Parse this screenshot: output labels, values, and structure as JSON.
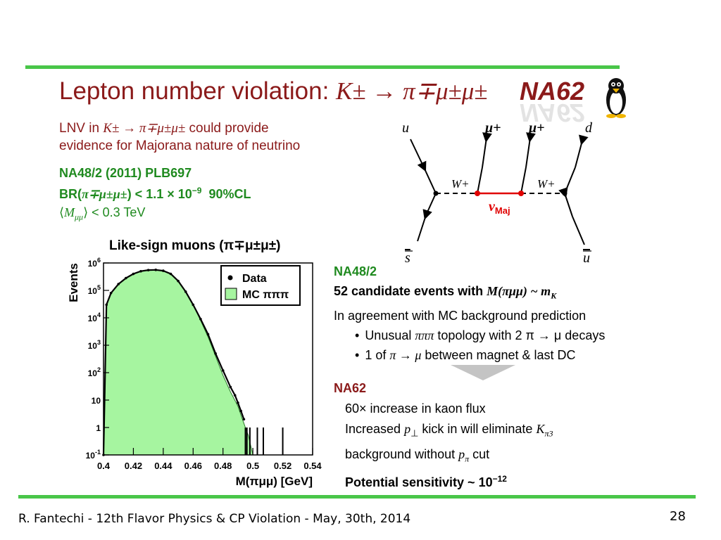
{
  "title": {
    "text": "Lepton number violation: ",
    "process": "K± → π∓μ±μ±"
  },
  "logo": {
    "text": "NA62",
    "icon": "penguin-icon"
  },
  "lnv": {
    "line1_prefix": "LNV in ",
    "line1_math": "K± → π∓μ±μ±",
    "line1_suffix": " could provide",
    "line2": "evidence for Majorana nature of neutrino"
  },
  "na48_result": {
    "ref": "NA48/2 (2011) PLB697",
    "br_prefix": "BR(",
    "br_math": "π∓μ±μ±",
    "br_suffix": ") < 1.1 × 10",
    "br_exp": "−9",
    "cl": "90%CL",
    "mmu_symbol": "M",
    "mmu_sub": "μμ",
    "mmu_value": " < 0.3 TeV"
  },
  "feynman": {
    "labels": {
      "u": "u",
      "mu1": "μ+",
      "mu2": "μ+",
      "d": "d",
      "w1": "W+",
      "w2": "W+",
      "nu": "ν",
      "nu_sub": "Maj",
      "sbar": "s",
      "ubar": "u"
    },
    "colors": {
      "line": "#000000",
      "majorana": "#e00000"
    }
  },
  "chart_data": {
    "type": "histogram",
    "title": "Like-sign muons (π∓μ±μ±)",
    "xlabel": "M(πμμ) [GeV]",
    "ylabel": "Events",
    "xlim": [
      0.4,
      0.54
    ],
    "ylim": [
      0.1,
      1000000
    ],
    "yscale": "log",
    "x_ticks": [
      "0.4",
      "0.42",
      "0.44",
      "0.46",
      "0.48",
      "0.5",
      "0.52",
      "0.54"
    ],
    "y_ticks": [
      {
        "base": "10",
        "exp": "-1"
      },
      {
        "base": "1",
        "exp": ""
      },
      {
        "base": "10",
        "exp": ""
      },
      {
        "base": "10",
        "exp": "2"
      },
      {
        "base": "10",
        "exp": "3"
      },
      {
        "base": "10",
        "exp": "4"
      },
      {
        "base": "10",
        "exp": "5"
      },
      {
        "base": "10",
        "exp": "6"
      }
    ],
    "legend": {
      "placement": "top-right",
      "data_label": "Data",
      "mc_label": "MC πππ"
    },
    "mc_fill": "#a6f5a0",
    "mc": {
      "x": [
        0.4,
        0.402,
        0.405,
        0.41,
        0.415,
        0.42,
        0.425,
        0.43,
        0.435,
        0.44,
        0.445,
        0.45,
        0.455,
        0.46,
        0.465,
        0.47,
        0.475,
        0.48,
        0.485,
        0.49,
        0.493,
        0.495,
        0.497,
        0.5
      ],
      "y": [
        0.1,
        30000,
        80000,
        170000,
        280000,
        400000,
        500000,
        550000,
        560000,
        520000,
        400000,
        220000,
        90000,
        30000,
        8000,
        2000,
        400,
        80,
        20,
        6,
        2,
        1,
        0.5,
        0.1
      ]
    },
    "data": {
      "x": [
        0.4,
        0.402,
        0.405,
        0.41,
        0.415,
        0.42,
        0.425,
        0.43,
        0.435,
        0.44,
        0.445,
        0.45,
        0.455,
        0.46,
        0.465,
        0.47,
        0.475,
        0.48,
        0.485,
        0.488,
        0.49,
        0.492,
        0.494
      ],
      "y": [
        0.1,
        30000,
        80000,
        170000,
        280000,
        400000,
        500000,
        550000,
        560000,
        520000,
        400000,
        220000,
        90000,
        30000,
        9000,
        2500,
        500,
        120,
        30,
        15,
        8,
        4,
        2
      ]
    },
    "data_spikes_x": [
      0.495,
      0.496,
      0.498,
      0.503,
      0.507,
      0.52
    ]
  },
  "na48_box": {
    "head": "NA48/2",
    "line1_prefix": "52 candidate events with ",
    "line1_math": "M(πμμ) ~ m",
    "line1_sub": "K",
    "line2": "In agreement with MC background prediction",
    "bullets": [
      {
        "pre": "Unusual ",
        "math": "πππ",
        "post": " topology with 2 π → μ decays"
      },
      {
        "pre": "1 of ",
        "math": "π → μ",
        "post": " between magnet & last DC"
      }
    ]
  },
  "na62_box": {
    "head": "NA62",
    "line1": "60× increase in kaon flux",
    "line2_pre": "Increased ",
    "line2_math": "p",
    "line2_sub": "⊥",
    "line2_mid": " kick in will eliminate ",
    "line2_k": "K",
    "line2_ksub": "π3",
    "line3_pre": "background without ",
    "line3_math": "p",
    "line3_sub": "π",
    "line3_post": " cut",
    "line4": "Potential sensitivity ~ 10",
    "line4_exp": "−12"
  },
  "footer": {
    "text": "R. Fantechi - 12th  Flavor Physics & CP Violation - May, 30th, 2014",
    "page": "28"
  },
  "colors": {
    "rule": "#49c649",
    "title": "#8b1a1a",
    "green_text": "#1f8a1f",
    "arrow": "#c8c8c8"
  }
}
